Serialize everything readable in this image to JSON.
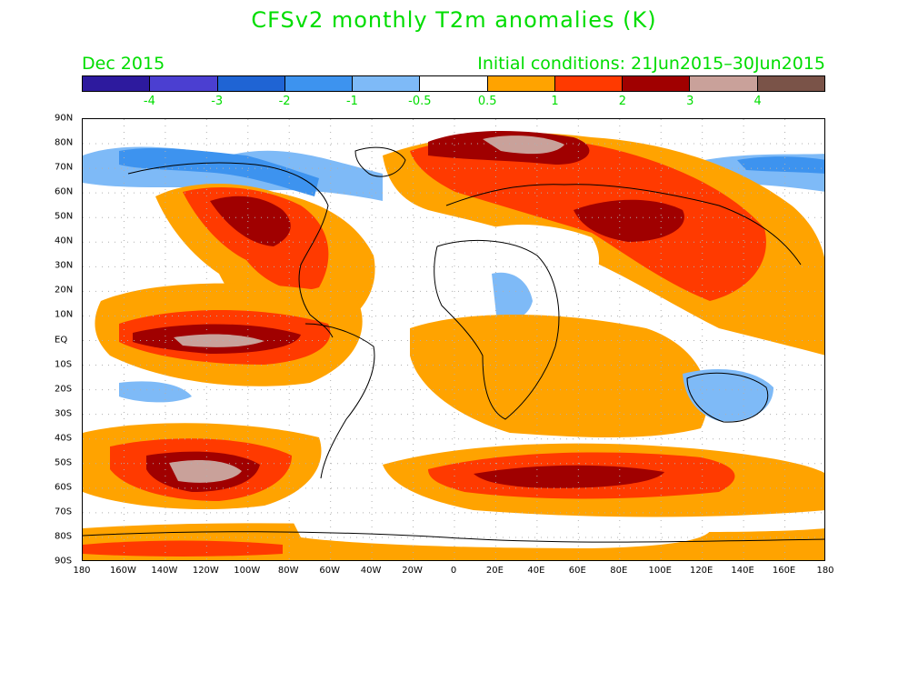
{
  "title": "CFSv2 monthly T2m anomalies (K)",
  "valid_month": "Dec 2015",
  "initial_conditions": "Initial conditions: 21Jun2015–30Jun2015",
  "colorbar": {
    "colors": [
      "#2d1a9e",
      "#4b3fd1",
      "#1f64d4",
      "#3d93ef",
      "#7ebaf7",
      "#ffffff",
      "#ffa300",
      "#ff3a00",
      "#a00000",
      "#c9a19a",
      "#7a5348"
    ],
    "labels": [
      "-4",
      "-3",
      "-2",
      "-1",
      "-0.5",
      "0.5",
      "1",
      "2",
      "3",
      "4"
    ]
  },
  "lat_labels": [
    "90N",
    "80N",
    "70N",
    "60N",
    "50N",
    "40N",
    "30N",
    "20N",
    "10N",
    "EQ",
    "10S",
    "20S",
    "30S",
    "40S",
    "50S",
    "60S",
    "70S",
    "80S",
    "90S"
  ],
  "lon_labels": [
    "180",
    "160W",
    "140W",
    "120W",
    "100W",
    "80W",
    "60W",
    "40W",
    "20W",
    "0",
    "20E",
    "40E",
    "60E",
    "80E",
    "100E",
    "120E",
    "140E",
    "160E",
    "180"
  ]
}
